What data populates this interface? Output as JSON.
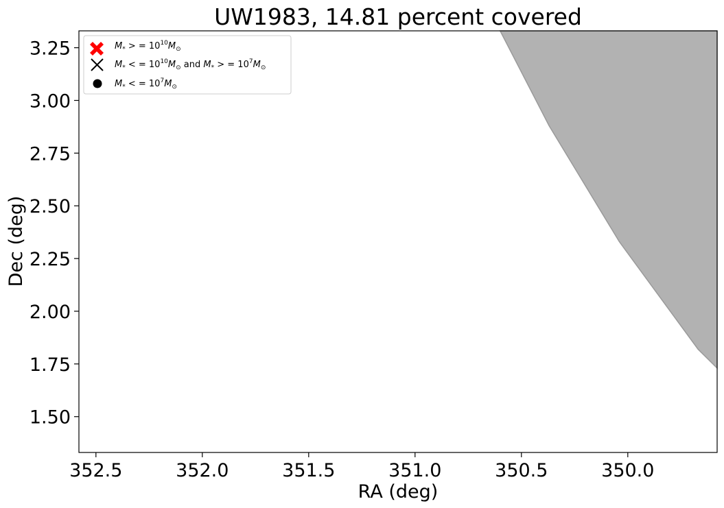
{
  "chart_data": {
    "type": "area",
    "title": "UW1983, 14.81 percent covered",
    "xlabel": "RA (deg)",
    "ylabel": "Dec (deg)",
    "xlim": [
      352.58,
      349.58
    ],
    "ylim": [
      1.33,
      3.33
    ],
    "x_inverted": true,
    "grid": false,
    "xticks": [
      352.5,
      352.0,
      351.5,
      351.0,
      350.5,
      350.0
    ],
    "xtick_labels": [
      "352.5",
      "352.0",
      "351.5",
      "351.0",
      "350.5",
      "350.0"
    ],
    "yticks": [
      1.5,
      1.75,
      2.0,
      2.25,
      2.5,
      2.75,
      3.0,
      3.25
    ],
    "ytick_labels": [
      "1.50",
      "1.75",
      "2.00",
      "2.25",
      "2.50",
      "2.75",
      "3.00",
      "3.25"
    ],
    "covered_region": {
      "name": "",
      "color": "#b2b2b2",
      "edge_color": "#9a9a9a",
      "boundary": [
        {
          "x": 350.6,
          "y": 3.33
        },
        {
          "x": 350.37,
          "y": 2.88
        },
        {
          "x": 350.04,
          "y": 2.33
        },
        {
          "x": 349.67,
          "y": 1.82
        },
        {
          "x": 349.58,
          "y": 1.73
        }
      ]
    },
    "legend": {
      "placement": "top-left",
      "entries": [
        {
          "label": "M* >= 10^10 M_sun",
          "marker": "filled-x",
          "color": "#ff0000"
        },
        {
          "label": "M* <= 10^10 M_sun and M* >= 10^7 M_sun",
          "marker": "x",
          "color": "#000000"
        },
        {
          "label": "M* <= 10^7 M_sun",
          "marker": "circle",
          "color": "#000000"
        }
      ]
    }
  }
}
